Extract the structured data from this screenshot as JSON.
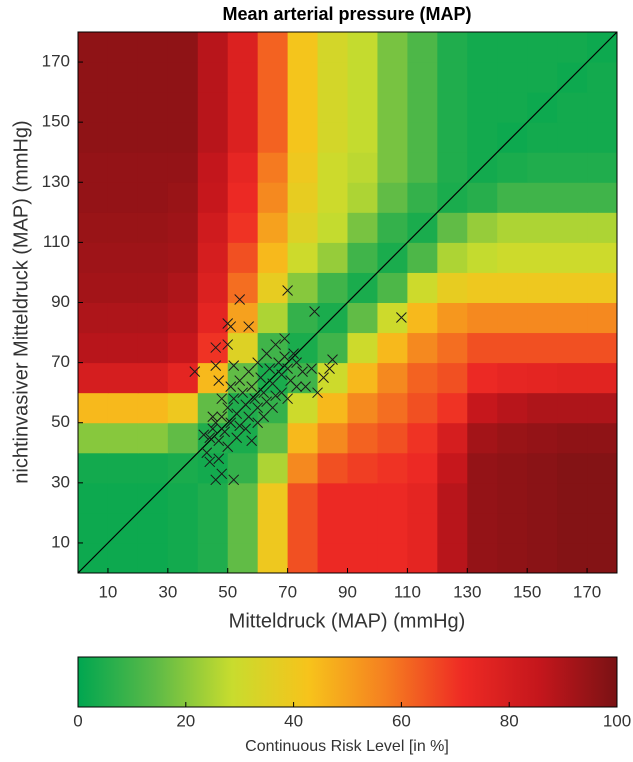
{
  "chart_data": {
    "type": "heatmap",
    "title": "Mean arterial pressure (MAP)",
    "xlabel": "Mitteldruck (MAP) (mmHg)",
    "ylabel": "nichtinvasiver Mitteldruck (MAP) (mmHg)",
    "xlim": [
      0,
      180
    ],
    "ylim": [
      0,
      180
    ],
    "xticks": [
      10,
      30,
      50,
      70,
      90,
      110,
      130,
      150,
      170
    ],
    "yticks": [
      10,
      30,
      50,
      70,
      90,
      110,
      130,
      150,
      170
    ],
    "x": [
      5,
      15,
      25,
      35,
      45,
      55,
      65,
      75,
      85,
      95,
      105,
      115,
      125,
      135,
      145,
      155,
      165,
      175
    ],
    "y": [
      5,
      15,
      25,
      35,
      45,
      55,
      65,
      75,
      85,
      95,
      105,
      115,
      125,
      135,
      145,
      155,
      165,
      175
    ],
    "z": [
      [
        2,
        2,
        2,
        3,
        5,
        15,
        40,
        65,
        72,
        72,
        72,
        75,
        88,
        95,
        96,
        97,
        98,
        98
      ],
      [
        2,
        2,
        2,
        3,
        5,
        15,
        40,
        65,
        72,
        72,
        72,
        75,
        88,
        95,
        96,
        97,
        98,
        98
      ],
      [
        2,
        2,
        2,
        3,
        5,
        15,
        40,
        65,
        72,
        72,
        72,
        75,
        88,
        95,
        96,
        97,
        98,
        98
      ],
      [
        3,
        3,
        3,
        4,
        3,
        8,
        25,
        55,
        65,
        68,
        70,
        72,
        85,
        95,
        96,
        97,
        98,
        98
      ],
      [
        20,
        20,
        20,
        15,
        5,
        4,
        15,
        45,
        55,
        62,
        65,
        70,
        80,
        92,
        94,
        95,
        96,
        96
      ],
      [
        45,
        45,
        45,
        40,
        15,
        5,
        8,
        30,
        45,
        55,
        60,
        65,
        70,
        85,
        88,
        90,
        90,
        90
      ],
      [
        80,
        80,
        80,
        75,
        45,
        15,
        4,
        10,
        30,
        45,
        55,
        62,
        65,
        72,
        74,
        75,
        76,
        76
      ],
      [
        88,
        88,
        88,
        85,
        70,
        35,
        10,
        4,
        10,
        30,
        45,
        55,
        60,
        65,
        65,
        65,
        65,
        65
      ],
      [
        90,
        90,
        90,
        88,
        75,
        50,
        25,
        8,
        4,
        15,
        30,
        45,
        52,
        55,
        55,
        55,
        55,
        55
      ],
      [
        92,
        92,
        92,
        90,
        78,
        60,
        38,
        20,
        10,
        4,
        12,
        30,
        38,
        40,
        40,
        40,
        40,
        40
      ],
      [
        93,
        93,
        93,
        92,
        80,
        65,
        45,
        30,
        22,
        10,
        4,
        12,
        25,
        28,
        30,
        30,
        30,
        30
      ],
      [
        94,
        94,
        94,
        93,
        82,
        70,
        50,
        35,
        28,
        18,
        8,
        4,
        15,
        22,
        25,
        25,
        25,
        25
      ],
      [
        95,
        95,
        95,
        94,
        85,
        72,
        55,
        38,
        30,
        25,
        15,
        8,
        4,
        6,
        10,
        10,
        10,
        10
      ],
      [
        95,
        95,
        95,
        95,
        86,
        74,
        58,
        40,
        30,
        27,
        18,
        12,
        5,
        3,
        4,
        5,
        5,
        5
      ],
      [
        96,
        96,
        96,
        96,
        88,
        78,
        62,
        42,
        32,
        28,
        18,
        12,
        5,
        3,
        2,
        3,
        3,
        3
      ],
      [
        96,
        96,
        96,
        96,
        88,
        78,
        62,
        42,
        32,
        28,
        18,
        12,
        5,
        3,
        3,
        2,
        3,
        3
      ],
      [
        96,
        96,
        96,
        96,
        88,
        78,
        62,
        42,
        32,
        28,
        18,
        12,
        5,
        3,
        3,
        3,
        2,
        3
      ],
      [
        96,
        96,
        96,
        96,
        88,
        78,
        62,
        42,
        32,
        28,
        18,
        12,
        5,
        3,
        3,
        3,
        3,
        2
      ]
    ],
    "colormap": [
      "#00a650",
      "#5cba47",
      "#c8dc2e",
      "#f7c31b",
      "#f57f20",
      "#ee2a24",
      "#c4161c",
      "#7a1214"
    ],
    "scatter": {
      "color": "#1a1a1a",
      "x": [
        39,
        46,
        46,
        47,
        50,
        51,
        50,
        54,
        57,
        70,
        79,
        108,
        85,
        84,
        52,
        46,
        48,
        52,
        43,
        44,
        45,
        46,
        47,
        48,
        49,
        50,
        51,
        52,
        53,
        54,
        55,
        56,
        57,
        58,
        59,
        60,
        61,
        62,
        63,
        64,
        65,
        66,
        67,
        68,
        69,
        70,
        71,
        72,
        73,
        75,
        76,
        78,
        80,
        82,
        44,
        47,
        50,
        53,
        56,
        58,
        60,
        62,
        65,
        68,
        70,
        73,
        57,
        60,
        63,
        66,
        69,
        42,
        45,
        48,
        51,
        54
      ],
      "y": [
        67,
        75,
        69,
        64,
        83,
        82,
        76,
        91,
        82,
        94,
        87,
        85,
        71,
        68,
        69,
        31,
        33,
        31,
        40,
        45,
        48,
        50,
        44,
        52,
        47,
        55,
        50,
        58,
        53,
        49,
        60,
        56,
        52,
        62,
        58,
        55,
        65,
        60,
        57,
        68,
        63,
        59,
        70,
        66,
        72,
        68,
        64,
        73,
        70,
        67,
        62,
        68,
        60,
        65,
        37,
        38,
        42,
        45,
        48,
        44,
        50,
        52,
        55,
        60,
        58,
        62,
        67,
        70,
        73,
        76,
        78,
        46,
        52,
        58,
        62,
        64
      ]
    },
    "colorbar": {
      "clim": [
        0,
        100
      ],
      "ticks": [
        0,
        20,
        40,
        60,
        80,
        100
      ],
      "label": "Continuous Risk Level [in %]"
    }
  }
}
